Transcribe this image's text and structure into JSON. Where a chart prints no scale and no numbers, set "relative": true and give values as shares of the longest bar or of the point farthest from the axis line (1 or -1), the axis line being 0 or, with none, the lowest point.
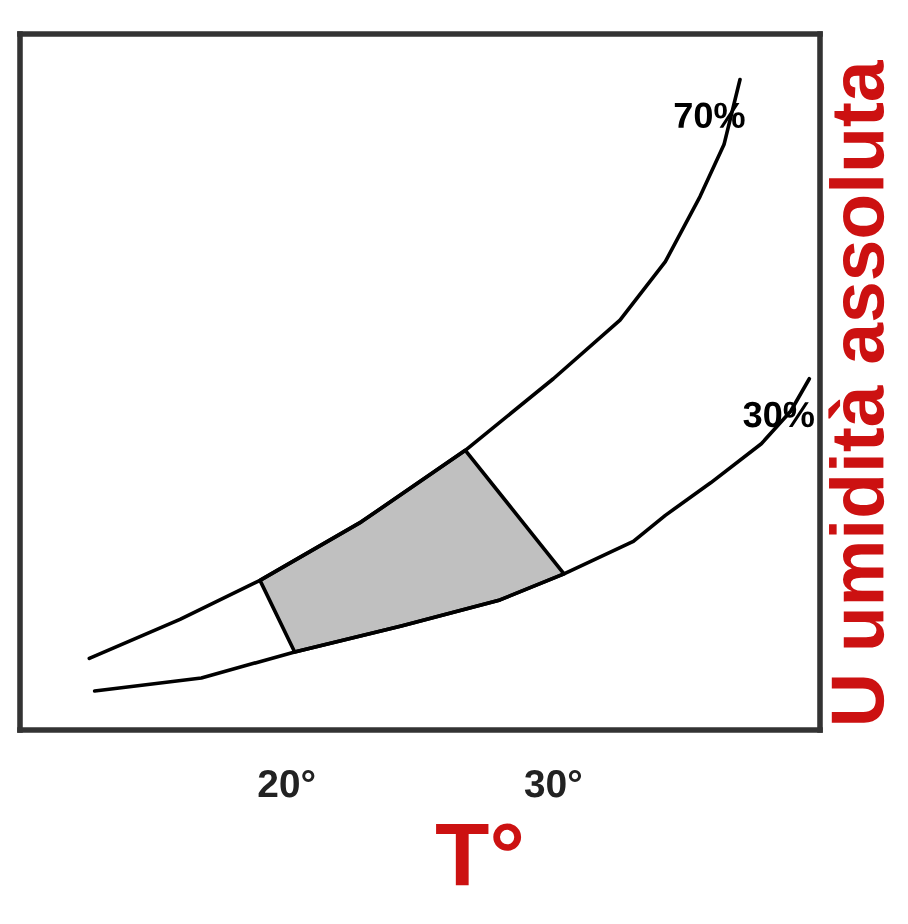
{
  "chart_data": {
    "type": "line",
    "xlabel": "T°",
    "ylabel": "U umidità assoluta",
    "relative": true,
    "tick_labels": "x",
    "xlim": [
      10,
      40
    ],
    "xticks": [
      {
        "value": 20,
        "label": "20°"
      },
      {
        "value": 30,
        "label": "30°"
      }
    ],
    "series": [
      {
        "name": "70%",
        "color": "#000000",
        "x": [
          12.6,
          16.0,
          19.0,
          22.8,
          26.7,
          30.0,
          32.5,
          34.2,
          35.5,
          36.4,
          37.0
        ],
        "values": [
          0.11,
          0.17,
          0.23,
          0.32,
          0.43,
          0.54,
          0.63,
          0.72,
          0.82,
          0.9,
          1.0
        ]
      },
      {
        "name": "30%",
        "color": "#000000",
        "x": [
          12.8,
          16.8,
          20.3,
          24.3,
          28.0,
          30.4,
          33.0,
          34.2,
          35.9,
          37.8,
          38.9,
          39.6
        ],
        "values": [
          0.06,
          0.08,
          0.12,
          0.16,
          0.2,
          0.24,
          0.29,
          0.33,
          0.38,
          0.44,
          0.49,
          0.54
        ]
      },
      {
        "type": "area",
        "color": "#c0c0c0",
        "x": [
          19.0,
          22.8,
          26.7,
          30.4,
          28.0,
          24.3,
          20.3
        ],
        "values": [
          0.23,
          0.32,
          0.43,
          0.24,
          0.2,
          0.16,
          0.12
        ]
      }
    ]
  }
}
